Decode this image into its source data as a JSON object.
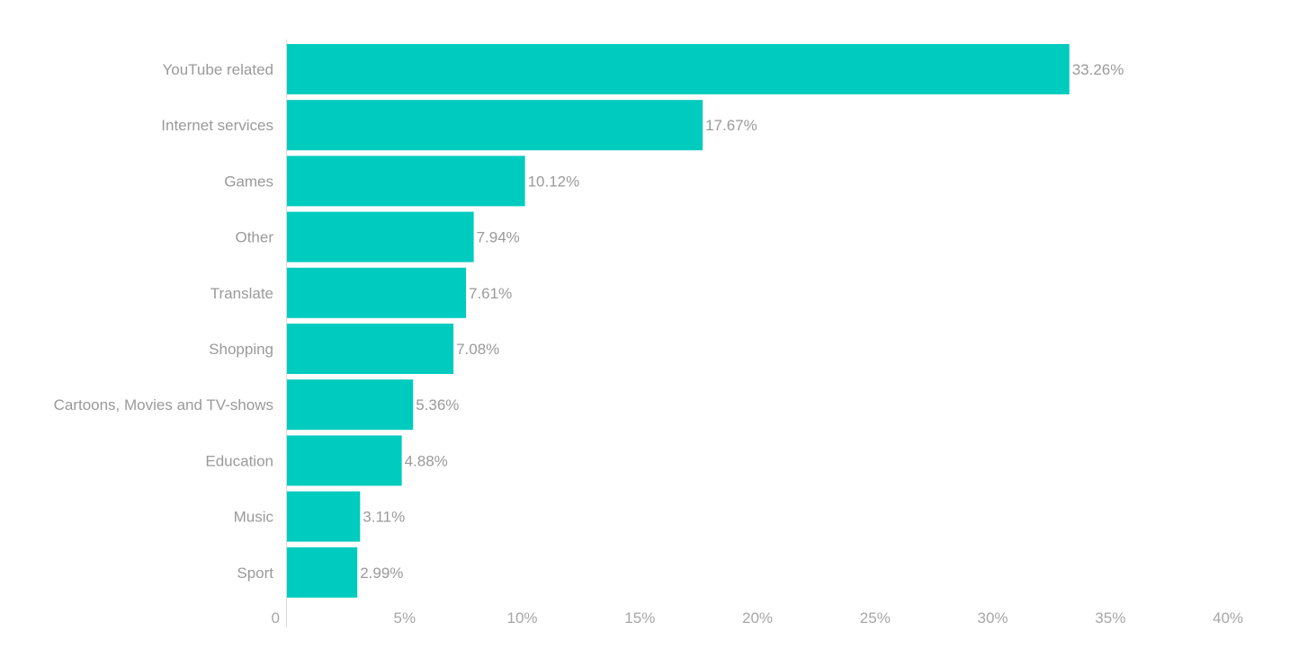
{
  "chart_data": {
    "type": "bar",
    "orientation": "horizontal",
    "categories": [
      "YouTube related",
      "Internet services",
      "Games",
      "Other",
      "Translate",
      "Shopping",
      "Cartoons, Movies and TV-shows",
      "Education",
      "Music",
      "Sport"
    ],
    "values": [
      33.26,
      17.67,
      10.12,
      7.94,
      7.61,
      7.08,
      5.36,
      4.88,
      3.11,
      2.99
    ],
    "value_labels": [
      "33.26%",
      "17.67%",
      "10.12%",
      "7.94%",
      "7.61%",
      "7.08%",
      "5.36%",
      "4.88%",
      "3.11%",
      "2.99%"
    ],
    "title": "",
    "xlabel": "",
    "ylabel": "",
    "xlim": [
      0,
      40
    ],
    "x_ticks": [
      "0",
      "5%",
      "10%",
      "15%",
      "20%",
      "25%",
      "30%",
      "35%",
      "40%"
    ],
    "grid": false,
    "legend": "none",
    "bar_color": "#00cbbf",
    "axis_color": "#d9d9d9",
    "text_color": "#9a9a9a"
  }
}
